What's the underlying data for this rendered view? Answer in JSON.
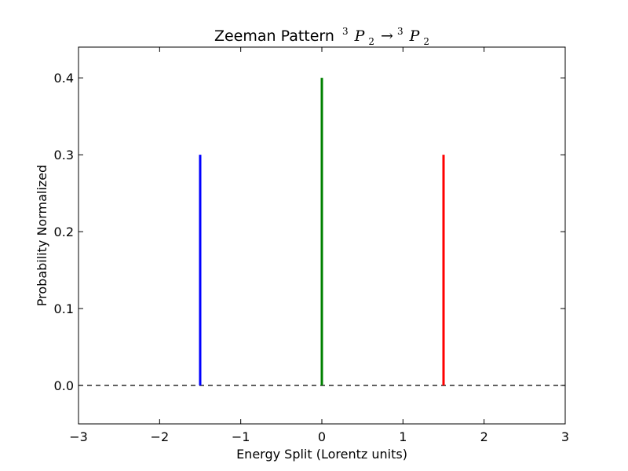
{
  "chart_data": {
    "type": "bar",
    "title": {
      "prefix": "Zeeman Pattern",
      "left_sup": "3",
      "left_letter": "P",
      "left_sub": "2",
      "arrow": "→",
      "right_sup": "3",
      "right_letter": "P",
      "right_sub": "2"
    },
    "xlabel": "Energy Split (Lorentz units)",
    "ylabel": "Probability Normalized",
    "xlim": [
      -3,
      3
    ],
    "ylim": [
      -0.05,
      0.44
    ],
    "xticks": [
      -3,
      -2,
      -1,
      0,
      1,
      2,
      3
    ],
    "xtick_labels": [
      "−3",
      "−2",
      "−1",
      "0",
      "1",
      "2",
      "3"
    ],
    "yticks": [
      0.0,
      0.1,
      0.2,
      0.3,
      0.4
    ],
    "ytick_labels": [
      "0.0",
      "0.1",
      "0.2",
      "0.3",
      "0.4"
    ],
    "grid": false,
    "baseline": {
      "y": 0,
      "style": "dashed",
      "color": "#000000"
    },
    "lines": [
      {
        "x": -1.5,
        "y": 0.3,
        "color": "#0000ff"
      },
      {
        "x": 0.0,
        "y": 0.4,
        "color": "#008000"
      },
      {
        "x": 1.5,
        "y": 0.3,
        "color": "#ff0000"
      }
    ]
  }
}
